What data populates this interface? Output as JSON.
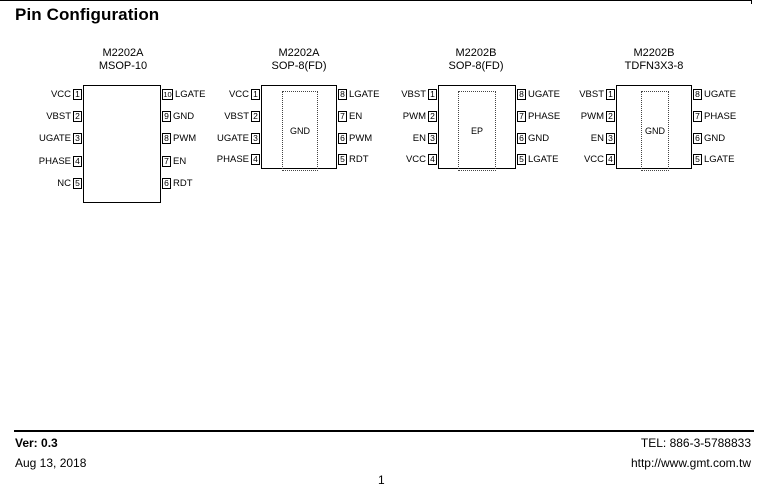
{
  "title": "Pin Configuration",
  "packages": [
    {
      "part": "M2202A",
      "type": "MSOP-10",
      "pad": "",
      "left_pins": [
        [
          "1",
          "VCC"
        ],
        [
          "2",
          "VBST"
        ],
        [
          "3",
          "UGATE"
        ],
        [
          "4",
          "PHASE"
        ],
        [
          "5",
          "NC"
        ]
      ],
      "right_pins": [
        [
          "10",
          "LGATE"
        ],
        [
          "9",
          "GND"
        ],
        [
          "8",
          "PWM"
        ],
        [
          "7",
          "EN"
        ],
        [
          "6",
          "RDT"
        ]
      ]
    },
    {
      "part": "M2202A",
      "type": "SOP-8(FD)",
      "pad": "GND",
      "left_pins": [
        [
          "1",
          "VCC"
        ],
        [
          "2",
          "VBST"
        ],
        [
          "3",
          "UGATE"
        ],
        [
          "4",
          "PHASE"
        ]
      ],
      "right_pins": [
        [
          "8",
          "LGATE"
        ],
        [
          "7",
          "EN"
        ],
        [
          "6",
          "PWM"
        ],
        [
          "5",
          "RDT"
        ]
      ]
    },
    {
      "part": "M2202B",
      "type": "SOP-8(FD)",
      "pad": "EP",
      "left_pins": [
        [
          "1",
          "VBST"
        ],
        [
          "2",
          "PWM"
        ],
        [
          "3",
          "EN"
        ],
        [
          "4",
          "VCC"
        ]
      ],
      "right_pins": [
        [
          "8",
          "UGATE"
        ],
        [
          "7",
          "PHASE"
        ],
        [
          "6",
          "GND"
        ],
        [
          "5",
          "LGATE"
        ]
      ]
    },
    {
      "part": "M2202B",
      "type": "TDFN3X3-8",
      "pad": "GND",
      "left_pins": [
        [
          "1",
          "VBST"
        ],
        [
          "2",
          "PWM"
        ],
        [
          "3",
          "EN"
        ],
        [
          "4",
          "VCC"
        ]
      ],
      "right_pins": [
        [
          "8",
          "UGATE"
        ],
        [
          "7",
          "PHASE"
        ],
        [
          "6",
          "GND"
        ],
        [
          "5",
          "LGATE"
        ]
      ]
    }
  ],
  "footer": {
    "version": "Ver: 0.3",
    "date": "Aug 13, 2018",
    "tel": "TEL: 886-3-5788833",
    "url": "http://www.gmt.com.tw",
    "page": "1"
  }
}
